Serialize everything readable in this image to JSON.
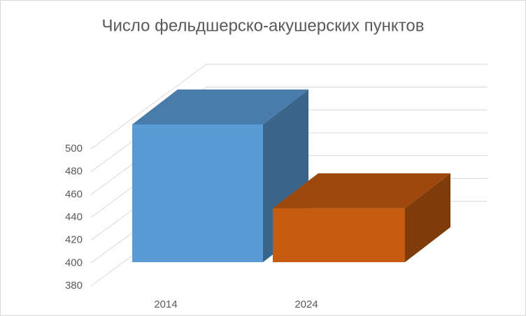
{
  "chart_data": {
    "type": "bar3d",
    "title": "Число фельдшерско-акушерских  пунктов",
    "categories": [
      "2014",
      "2024"
    ],
    "values": [
      500,
      427
    ],
    "series_colors": [
      "#5b9bd5",
      "#c55a11"
    ],
    "ylim": [
      380,
      500
    ],
    "yticks": [
      380,
      400,
      420,
      440,
      460,
      480,
      500
    ],
    "grid": true
  }
}
